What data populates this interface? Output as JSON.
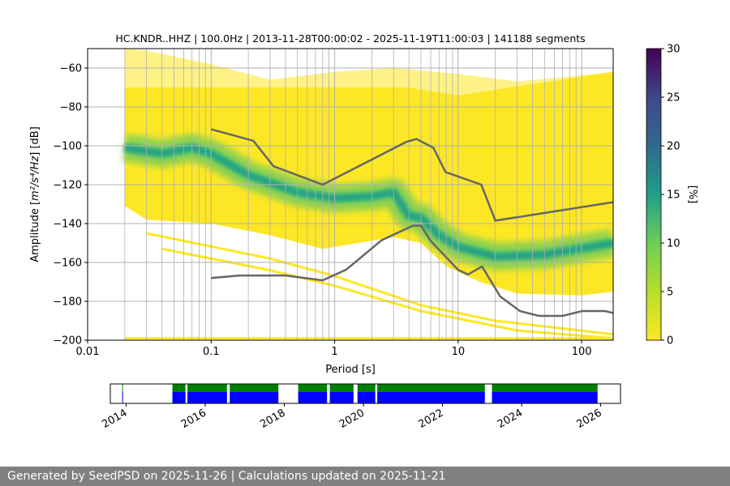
{
  "chart_data": [
    {
      "type": "heatmap",
      "title": "HC.KNDR..HHZ | 100.0Hz | 2013-11-28T00:00:02 - 2025-11-19T11:00:03 | 141188 segments",
      "xlabel": "Period [s]",
      "ylabel_prefix": "Amplitude [",
      "ylabel_math": "m²/s⁴/Hz",
      "ylabel_suffix": "] [dB]",
      "xscale": "log",
      "xlim": [
        0.01,
        180
      ],
      "ylim": [
        -200,
        -50
      ],
      "grid": true,
      "x_ticks": [
        {
          "v": 0.01,
          "label": "0.01"
        },
        {
          "v": 0.1,
          "label": "0.1"
        },
        {
          "v": 1,
          "label": "1"
        },
        {
          "v": 10,
          "label": "10"
        },
        {
          "v": 100,
          "label": "100"
        }
      ],
      "y_ticks": [
        {
          "v": -60,
          "label": "−60"
        },
        {
          "v": -80,
          "label": "−80"
        },
        {
          "v": -100,
          "label": "−100"
        },
        {
          "v": -120,
          "label": "−120"
        },
        {
          "v": -140,
          "label": "−140"
        },
        {
          "v": -160,
          "label": "−160"
        },
        {
          "v": -180,
          "label": "−180"
        },
        {
          "v": -200,
          "label": "−200"
        }
      ],
      "colormap": "viridis_r",
      "colorbar": {
        "label": "[%]",
        "range": [
          0,
          30
        ],
        "ticks": [
          {
            "v": 0,
            "label": "0"
          },
          {
            "v": 5,
            "label": "5"
          },
          {
            "v": 10,
            "label": "10"
          },
          {
            "v": 15,
            "label": "15"
          },
          {
            "v": 20,
            "label": "20"
          },
          {
            "v": 25,
            "label": "25"
          },
          {
            "v": 30,
            "label": "30"
          }
        ]
      },
      "colors": {
        "low": "#fde725",
        "mid_low": "#8fd14f",
        "mid": "#35b779",
        "high": "#21918c",
        "noise_model": "#666666",
        "grid": "#b0b0b0"
      },
      "envelope_upper": [
        [
          0.02,
          -70
        ],
        [
          0.1,
          -70
        ],
        [
          1,
          -70
        ],
        [
          4,
          -70
        ],
        [
          10,
          -74
        ],
        [
          180,
          -62
        ]
      ],
      "envelope_upper_sparse": [
        [
          0.02,
          -50
        ],
        [
          0.03,
          -51
        ],
        [
          0.1,
          -58
        ],
        [
          0.3,
          -66
        ],
        [
          1,
          -62
        ],
        [
          3,
          -60
        ],
        [
          10,
          -63
        ],
        [
          30,
          -67
        ],
        [
          180,
          -62
        ]
      ],
      "envelope_lower": [
        [
          0.02,
          -131
        ],
        [
          0.03,
          -138
        ],
        [
          0.1,
          -140
        ],
        [
          0.3,
          -146
        ],
        [
          0.8,
          -153
        ],
        [
          1,
          -152
        ],
        [
          3,
          -147
        ],
        [
          5,
          -150
        ],
        [
          8,
          -162
        ],
        [
          15,
          -170
        ],
        [
          30,
          -176
        ],
        [
          100,
          -177
        ],
        [
          180,
          -175
        ]
      ],
      "mode": [
        [
          0.02,
          -101
        ],
        [
          0.04,
          -104
        ],
        [
          0.07,
          -101
        ],
        [
          0.1,
          -104
        ],
        [
          0.2,
          -115
        ],
        [
          0.5,
          -124
        ],
        [
          1,
          -127
        ],
        [
          2,
          -126
        ],
        [
          3,
          -124
        ],
        [
          4,
          -136
        ],
        [
          5,
          -137
        ],
        [
          7,
          -146
        ],
        [
          10,
          -152
        ],
        [
          20,
          -157
        ],
        [
          50,
          -156
        ],
        [
          180,
          -150
        ]
      ],
      "sparse_traces": [
        [
          [
            0.03,
            -145
          ],
          [
            0.3,
            -158
          ],
          [
            1,
            -167
          ],
          [
            5,
            -182
          ],
          [
            20,
            -190
          ],
          [
            180,
            -197
          ]
        ],
        [
          [
            0.04,
            -153
          ],
          [
            0.3,
            -164
          ],
          [
            1,
            -172
          ],
          [
            5,
            -185
          ],
          [
            30,
            -195
          ],
          [
            180,
            -199
          ]
        ],
        [
          [
            0.02,
            -199
          ],
          [
            180,
            -199
          ]
        ]
      ],
      "nhnm": [
        [
          0.1,
          -91.5
        ],
        [
          0.22,
          -97.4
        ],
        [
          0.32,
          -110.5
        ],
        [
          0.8,
          -120
        ],
        [
          3.8,
          -98
        ],
        [
          4.6,
          -96.5
        ],
        [
          6.3,
          -101
        ],
        [
          7.9,
          -113.5
        ],
        [
          15.4,
          -120
        ],
        [
          20,
          -138.5
        ],
        [
          180,
          -129
        ]
      ],
      "nlnm": [
        [
          0.1,
          -168
        ],
        [
          0.17,
          -166.7
        ],
        [
          0.4,
          -166.7
        ],
        [
          0.8,
          -169.2
        ],
        [
          1.24,
          -163.7
        ],
        [
          2.4,
          -148.6
        ],
        [
          4.3,
          -141.1
        ],
        [
          5,
          -141.1
        ],
        [
          6,
          -149
        ],
        [
          10,
          -163.8
        ],
        [
          12,
          -166.2
        ],
        [
          15.6,
          -162.1
        ],
        [
          21.9,
          -177.5
        ],
        [
          31.6,
          -185
        ],
        [
          45,
          -187.5
        ],
        [
          70,
          -187.5
        ],
        [
          101,
          -185
        ],
        [
          154,
          -185
        ],
        [
          180,
          -186
        ]
      ]
    },
    {
      "type": "timeline",
      "xlim": [
        2013.6,
        2026.5
      ],
      "x_ticks": [
        {
          "v": 2014,
          "label": "2014"
        },
        {
          "v": 2016,
          "label": "2016"
        },
        {
          "v": 2018,
          "label": "2018"
        },
        {
          "v": 2020,
          "label": "2020"
        },
        {
          "v": 2022,
          "label": "2022"
        },
        {
          "v": 2024,
          "label": "2024"
        },
        {
          "v": 2026,
          "label": "2026"
        }
      ],
      "colors": {
        "processed": "#008000",
        "available": "#0000ff"
      },
      "coverage": [
        [
          2013.9,
          2013.92
        ],
        [
          2015.17,
          2015.5
        ],
        [
          2015.55,
          2016.55
        ],
        [
          2016.62,
          2017.85
        ],
        [
          2018.35,
          2019.08
        ],
        [
          2019.15,
          2019.75
        ],
        [
          2019.85,
          2020.3
        ],
        [
          2020.35,
          2023.07
        ],
        [
          2023.25,
          2025.92
        ]
      ]
    }
  ],
  "footer": {
    "text": "Generated by SeedPSD on 2025-11-26 | Calculations updated on 2025-11-21"
  }
}
